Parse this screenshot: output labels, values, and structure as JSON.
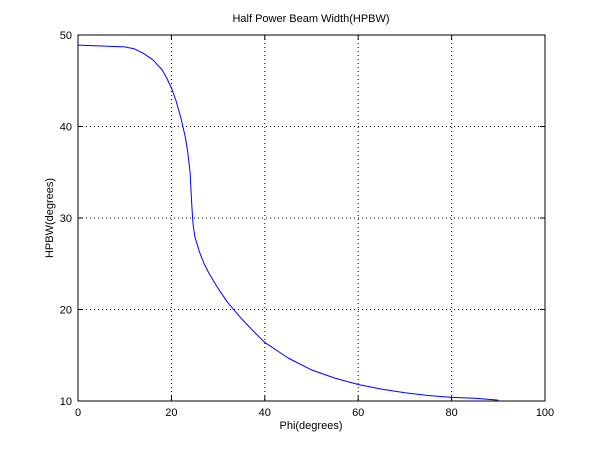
{
  "chart_data": {
    "type": "line",
    "title": "Half Power Beam Width(HPBW)",
    "xlabel": "Phi(degrees)",
    "ylabel": "HPBW(degrees)",
    "xlim": [
      0,
      100
    ],
    "ylim": [
      10,
      50
    ],
    "xticks": [
      0,
      20,
      40,
      60,
      80,
      100
    ],
    "yticks": [
      10,
      20,
      30,
      40,
      50
    ],
    "grid": true,
    "grid_style": "dotted",
    "legend": "none",
    "series": [
      {
        "color": "#0000ff",
        "x": [
          0,
          5,
          10,
          12,
          14,
          16,
          18,
          19,
          20,
          21,
          22,
          23,
          23.5,
          24,
          24.3,
          24.6,
          25,
          26,
          27,
          28,
          30,
          32,
          35,
          38,
          40,
          45,
          50,
          55,
          60,
          65,
          70,
          75,
          80,
          85,
          90
        ],
        "y": [
          48.9,
          48.8,
          48.7,
          48.5,
          48.0,
          47.3,
          46.2,
          45.3,
          44.2,
          42.8,
          41.0,
          38.8,
          37.2,
          35.0,
          32.0,
          29.5,
          28.0,
          26.3,
          25.0,
          24.0,
          22.3,
          20.8,
          19.0,
          17.4,
          16.4,
          14.7,
          13.4,
          12.5,
          11.8,
          11.3,
          10.9,
          10.6,
          10.4,
          10.3,
          10.1
        ]
      }
    ]
  }
}
